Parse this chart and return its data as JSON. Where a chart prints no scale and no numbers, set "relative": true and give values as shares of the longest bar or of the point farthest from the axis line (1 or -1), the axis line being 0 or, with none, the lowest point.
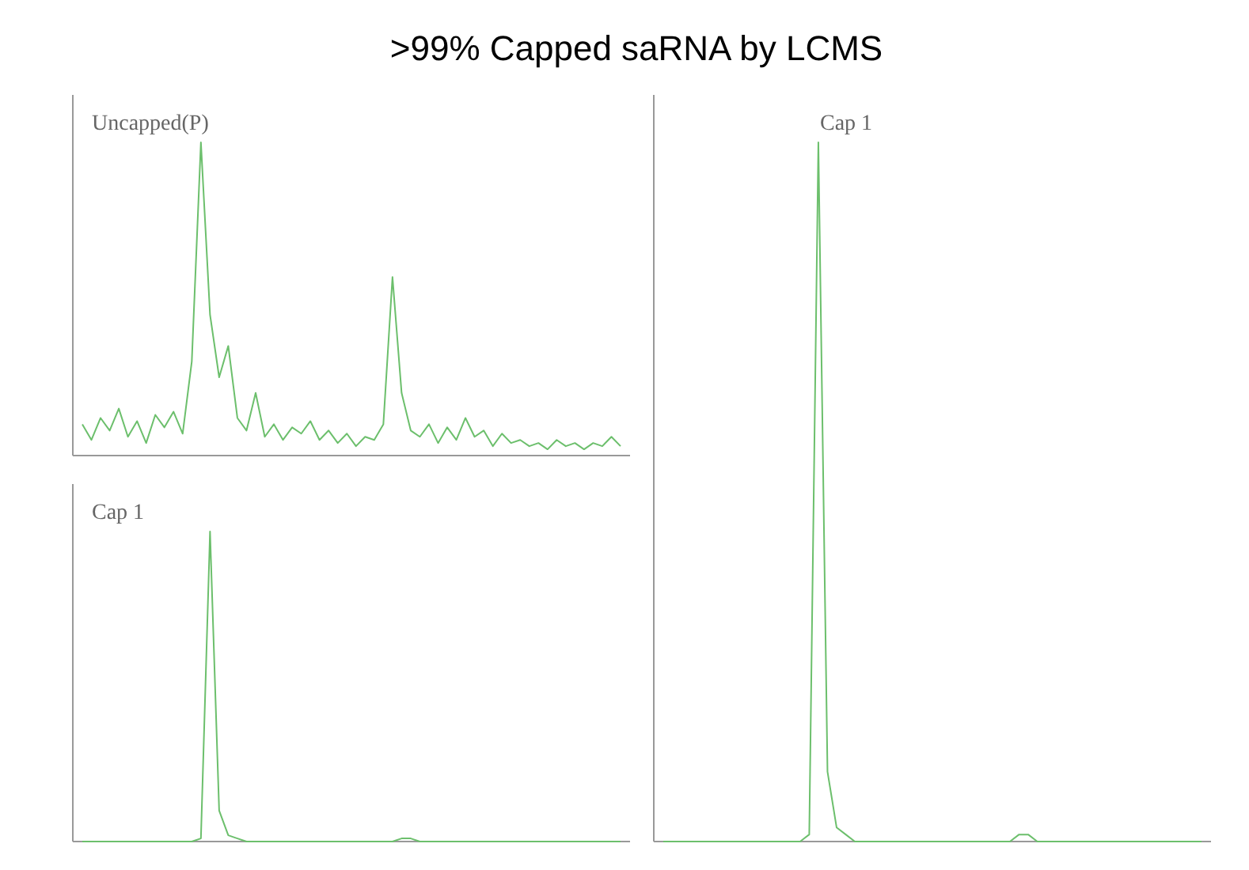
{
  "chart_data": [
    {
      "type": "line",
      "title": ">99% Capped saRNA by LCMS",
      "subtitle": "Uncapped(P)",
      "relative": true,
      "categories": [
        null,
        null,
        null,
        null,
        null,
        null,
        null,
        null,
        null,
        null,
        null,
        null,
        null,
        null,
        null,
        null,
        null,
        null,
        null,
        null,
        null,
        null,
        null,
        null,
        null,
        null,
        null,
        null,
        null,
        null,
        null,
        null,
        null,
        null,
        null,
        null,
        null,
        null,
        null,
        null,
        null,
        null,
        null,
        null,
        null,
        null,
        null,
        null,
        null,
        null,
        null,
        null,
        null,
        null,
        null,
        null,
        null,
        null,
        null,
        null
      ],
      "series": [
        {
          "color": "#6cbf6c",
          "values": [
            0.1,
            0.05,
            0.12,
            0.08,
            0.15,
            0.06,
            0.11,
            0.04,
            0.13,
            0.09,
            0.14,
            0.07,
            0.3,
            1,
            0.45,
            0.25,
            0.35,
            0.12,
            0.08,
            0.2,
            0.06,
            0.1,
            0.05,
            0.09,
            0.07,
            0.11,
            0.05,
            0.08,
            0.04,
            0.07,
            0.03,
            0.06,
            0.05,
            0.1,
            0.57,
            0.2,
            0.08,
            0.06,
            0.1,
            0.04,
            0.09,
            0.05,
            0.12,
            0.06,
            0.08,
            0.03,
            0.07,
            0.04,
            0.05,
            0.03,
            0.04,
            0.02,
            0.05,
            0.03,
            0.04,
            0.02,
            0.04,
            0.03,
            0.06,
            0.03
          ]
        }
      ]
    },
    {
      "type": "line",
      "title": "Cap 1",
      "relative": true,
      "categories": [
        null,
        null,
        null,
        null,
        null,
        null,
        null,
        null,
        null,
        null,
        null,
        null,
        null,
        null,
        null,
        null,
        null,
        null,
        null,
        null,
        null,
        null,
        null,
        null,
        null,
        null,
        null,
        null,
        null,
        null,
        null,
        null,
        null,
        null,
        null,
        null,
        null,
        null,
        null,
        null,
        null,
        null,
        null,
        null,
        null,
        null,
        null,
        null,
        null,
        null,
        null,
        null,
        null,
        null,
        null,
        null,
        null,
        null,
        null,
        null
      ],
      "series": [
        {
          "color": "#6cbf6c",
          "values": [
            0,
            0,
            0,
            0,
            0,
            0,
            0,
            0,
            0,
            0,
            0,
            0,
            0,
            0.01,
            1,
            0.1,
            0.02,
            0.01,
            0,
            0,
            0,
            0,
            0,
            0,
            0,
            0,
            0,
            0,
            0,
            0,
            0,
            0,
            0,
            0,
            0,
            0.01,
            0.01,
            0,
            0,
            0,
            0,
            0,
            0,
            0,
            0,
            0,
            0,
            0,
            0,
            0,
            0,
            0,
            0,
            0,
            0,
            0,
            0,
            0,
            0,
            0
          ]
        }
      ]
    },
    {
      "type": "line",
      "title": "Cap 1",
      "relative": true,
      "categories": [
        null,
        null,
        null,
        null,
        null,
        null,
        null,
        null,
        null,
        null,
        null,
        null,
        null,
        null,
        null,
        null,
        null,
        null,
        null,
        null,
        null,
        null,
        null,
        null,
        null,
        null,
        null,
        null,
        null,
        null,
        null,
        null,
        null,
        null,
        null,
        null,
        null,
        null,
        null,
        null,
        null,
        null,
        null,
        null,
        null,
        null,
        null,
        null,
        null,
        null,
        null,
        null,
        null,
        null,
        null,
        null,
        null,
        null,
        null,
        null
      ],
      "series": [
        {
          "color": "#6cbf6c",
          "values": [
            0,
            0,
            0,
            0,
            0,
            0,
            0,
            0,
            0,
            0,
            0,
            0,
            0,
            0,
            0,
            0,
            0.01,
            1,
            0.1,
            0.02,
            0.01,
            0,
            0,
            0,
            0,
            0,
            0,
            0,
            0,
            0,
            0,
            0,
            0,
            0,
            0,
            0,
            0,
            0,
            0,
            0.01,
            0.01,
            0,
            0,
            0,
            0,
            0,
            0,
            0,
            0,
            0,
            0,
            0,
            0,
            0,
            0,
            0,
            0,
            0,
            0,
            0
          ]
        }
      ]
    }
  ]
}
